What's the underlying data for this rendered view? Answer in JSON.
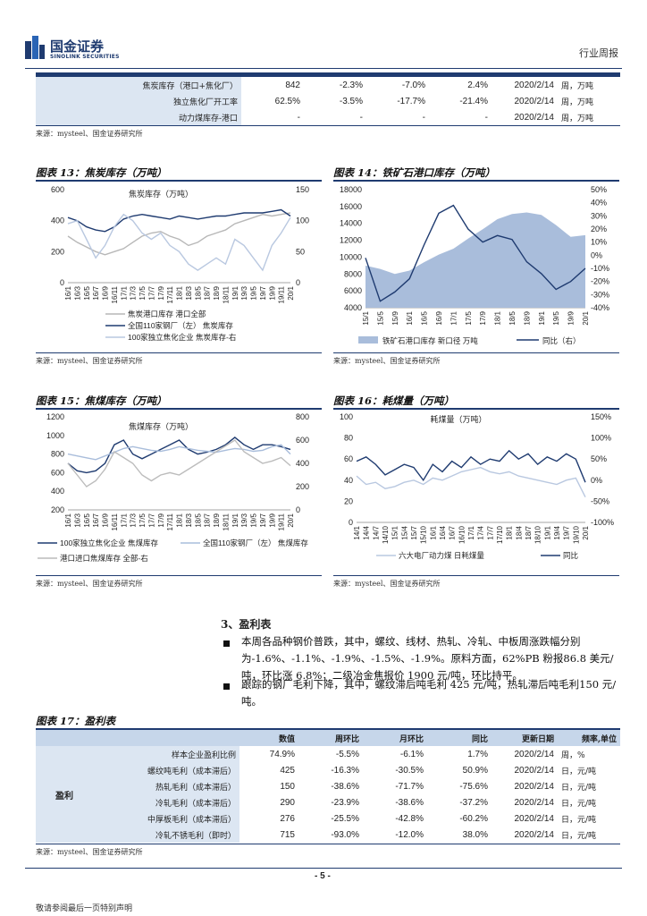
{
  "header": {
    "logo_cn": "国金证券",
    "logo_en": "SINOLINK SECURITIES",
    "doc_type": "行业周报"
  },
  "top_table": {
    "rows": [
      {
        "label": "焦炭库存（港口+焦化厂）",
        "cells": [
          "842",
          "-2.3%",
          "-7.0%",
          "2.4%",
          "2020/2/14"
        ],
        "unit": "周，万吨"
      },
      {
        "label": "独立焦化厂开工率",
        "cells": [
          "62.5%",
          "-3.5%",
          "-17.7%",
          "-21.4%",
          "2020/2/14"
        ],
        "unit": "周，万吨"
      },
      {
        "label": "动力煤库存-港口",
        "cells": [
          "-",
          "-",
          "-",
          "-",
          "2020/2/14"
        ],
        "unit": "周，万吨"
      }
    ],
    "source": "来源：mysteel、国金证券研究所"
  },
  "charts_row1": {
    "left_caption": "图表 13：焦炭库存（万吨）",
    "right_caption": "图表 14：铁矿石港口库存（万吨）",
    "source_left": "来源：mysteel、国金证券研究所",
    "source_right": "来源：mysteel、国金证券研究所"
  },
  "charts_row2": {
    "left_caption": "图表 15：焦煤库存（万吨）",
    "right_caption": "图表 16：耗煤量（万吨）",
    "source_left": "来源：mysteel、国金证券研究所",
    "source_right": "来源：mysteel、国金证券研究所"
  },
  "chart_data": [
    {
      "type": "line",
      "title": "焦炭库存（万吨）",
      "x_ticks": [
        "16/1",
        "16/3",
        "16/5",
        "16/7",
        "16/9",
        "16/11",
        "17/1",
        "17/3",
        "17/5",
        "17/7",
        "17/9",
        "17/11",
        "18/1",
        "18/3",
        "18/5",
        "18/7",
        "18/9",
        "18/11",
        "19/1",
        "19/3",
        "19/5",
        "19/7",
        "19/9",
        "19/11",
        "20/1"
      ],
      "ylim_left": [
        0,
        600
      ],
      "yticks_left": [
        "0",
        "200",
        "400",
        "600"
      ],
      "ylim_right": [
        0,
        150
      ],
      "yticks_right": [
        "0",
        "50",
        "100",
        "150"
      ],
      "series": [
        {
          "name": "焦炭港口库存 港口全部",
          "axis": "left",
          "color": "#b7b7b7",
          "values": [
            300,
            260,
            230,
            200,
            180,
            200,
            220,
            260,
            300,
            320,
            330,
            300,
            280,
            240,
            260,
            300,
            320,
            340,
            380,
            400,
            420,
            440,
            430,
            440,
            450
          ]
        },
        {
          "name": "全国110家钢厂（左） 焦炭库存",
          "axis": "left",
          "color": "#1f3b70",
          "values": [
            420,
            400,
            360,
            340,
            330,
            360,
            410,
            430,
            440,
            430,
            420,
            410,
            430,
            420,
            410,
            420,
            430,
            430,
            440,
            450,
            450,
            450,
            460,
            470,
            430
          ]
        },
        {
          "name": "100家独立焦化企业 焦炭库存-右",
          "axis": "right",
          "color": "#b9c8e0",
          "values": [
            95,
            100,
            70,
            40,
            60,
            90,
            110,
            100,
            80,
            70,
            80,
            60,
            50,
            30,
            20,
            30,
            40,
            30,
            70,
            60,
            40,
            20,
            60,
            80,
            105
          ]
        }
      ],
      "legend": [
        "焦炭港口库存 港口全部",
        "全国110家钢厂（左） 焦炭库存",
        "100家独立焦化企业 焦炭库存-右"
      ]
    },
    {
      "type": "area",
      "title": "铁矿石港口库存（万吨）",
      "x_ticks": [
        "15/1",
        "15/5",
        "15/9",
        "16/1",
        "16/5",
        "16/9",
        "17/1",
        "17/5",
        "17/9",
        "18/1",
        "18/5",
        "18/9",
        "19/1",
        "19/5",
        "19/9",
        "20/1"
      ],
      "ylim_left": [
        4000,
        18000
      ],
      "yticks_left": [
        "4000",
        "6000",
        "8000",
        "10000",
        "12000",
        "14000",
        "16000",
        "18000"
      ],
      "ylim_right": [
        -40,
        50
      ],
      "yticks_right": [
        "-40%",
        "-30%",
        "-20%",
        "-10%",
        "0%",
        "10%",
        "20%",
        "30%",
        "40%",
        "50%"
      ],
      "series": [
        {
          "name": "铁矿石港口库存 新口径 万吨",
          "axis": "left",
          "color": "#a9bddb",
          "values": [
            9000,
            8600,
            8000,
            8400,
            9400,
            10300,
            11000,
            12200,
            13300,
            14500,
            15100,
            15300,
            15000,
            13800,
            12400,
            12600
          ]
        },
        {
          "name": "同比（右）",
          "axis": "right",
          "color": "#1f3b70",
          "values": [
            -2,
            -35,
            -28,
            -18,
            8,
            32,
            38,
            20,
            10,
            15,
            12,
            -5,
            -14,
            -26,
            -20,
            -10
          ]
        }
      ],
      "legend": [
        "铁矿石港口库存 新口径 万吨",
        "同比（右）"
      ]
    },
    {
      "type": "line",
      "title": "焦煤库存（万吨）",
      "x_ticks": [
        "16/1",
        "16/3",
        "16/5",
        "16/7",
        "16/9",
        "16/11",
        "17/1",
        "17/3",
        "17/5",
        "17/7",
        "17/9",
        "17/11",
        "18/1",
        "18/3",
        "18/5",
        "18/7",
        "18/9",
        "18/11",
        "19/1",
        "19/3",
        "19/5",
        "19/7",
        "19/9",
        "19/11",
        "20/1"
      ],
      "ylim_left": [
        200,
        1200
      ],
      "yticks_left": [
        "200",
        "400",
        "600",
        "800",
        "1000",
        "1200"
      ],
      "ylim_right": [
        0,
        800
      ],
      "yticks_right": [
        "0",
        "200",
        "400",
        "600",
        "800"
      ],
      "series": [
        {
          "name": "100家独立焦化企业 焦煤库存",
          "axis": "left",
          "color": "#1f3b70",
          "values": [
            700,
            620,
            600,
            620,
            700,
            900,
            950,
            800,
            750,
            800,
            850,
            900,
            950,
            850,
            800,
            820,
            850,
            900,
            980,
            900,
            850,
            900,
            900,
            880,
            850
          ]
        },
        {
          "name": "全国110家钢厂（左） 焦煤库存",
          "axis": "left",
          "color": "#a9bddb",
          "values": [
            800,
            780,
            760,
            740,
            780,
            820,
            860,
            880,
            860,
            840,
            830,
            850,
            880,
            860,
            840,
            830,
            820,
            840,
            860,
            850,
            830,
            840,
            880,
            900,
            800
          ]
        },
        {
          "name": "港口进口焦煤库存 全部-右",
          "axis": "right",
          "color": "#bcbcbc",
          "values": [
            400,
            300,
            200,
            250,
            350,
            500,
            450,
            400,
            300,
            250,
            300,
            320,
            300,
            350,
            400,
            450,
            500,
            550,
            600,
            500,
            450,
            400,
            420,
            450,
            380
          ]
        }
      ],
      "legend": [
        "100家独立焦化企业 焦煤库存",
        "全国110家钢厂（左） 焦煤库存",
        "港口进口焦煤库存 全部-右"
      ]
    },
    {
      "type": "line",
      "title": "耗煤量（万吨）",
      "x_ticks": [
        "14/1",
        "14/4",
        "14/7",
        "14/10",
        "15/1",
        "15/4",
        "15/7",
        "15/10",
        "16/1",
        "16/4",
        "16/7",
        "16/10",
        "17/1",
        "17/4",
        "17/7",
        "17/10",
        "18/1",
        "18/4",
        "18/7",
        "18/10",
        "19/1",
        "19/4",
        "19/7",
        "19/10",
        "20/1"
      ],
      "ylim_left": [
        0,
        100
      ],
      "yticks_left": [
        "0",
        "20",
        "40",
        "60",
        "80",
        "100"
      ],
      "ylim_right": [
        -100,
        150
      ],
      "yticks_right": [
        "-100%",
        "-50%",
        "0%",
        "50%",
        "100%",
        "150%"
      ],
      "series": [
        {
          "name": "六大电厂动力煤 日耗煤量",
          "axis": "left",
          "color": "#1f3b70",
          "values": [
            58,
            62,
            55,
            45,
            50,
            55,
            52,
            40,
            55,
            48,
            58,
            52,
            62,
            55,
            60,
            58,
            68,
            60,
            65,
            55,
            62,
            58,
            65,
            60,
            38
          ]
        },
        {
          "name": "同比",
          "axis": "right",
          "color": "#b9c8e0",
          "values": [
            10,
            -10,
            -5,
            -20,
            -15,
            -5,
            0,
            -10,
            5,
            0,
            10,
            20,
            25,
            30,
            20,
            15,
            20,
            10,
            5,
            0,
            -5,
            -10,
            0,
            5,
            -40
          ]
        }
      ],
      "legend": [
        "六大电厂动力煤 日耗煤量",
        "同比"
      ]
    }
  ],
  "section": {
    "title": "3、盈利表",
    "bullets": [
      "本周各品种钢价普跌，其中，螺纹、线材、热轧、冷轧、中板周涨跌幅分别为-1.6%、-1.1%、-1.9%、-1.5%、-1.9%。原料方面，62%PB 粉报86.8 美元/吨，环比涨 6.8%；二级冶金焦报价 1900 元/吨，环比持平。",
      "跟踪的钢厂毛利下降，其中，螺纹滞后吨毛利 425 元/吨，热轧滞后吨毛利150 元/吨。"
    ]
  },
  "profit_table": {
    "caption": "图表 17：盈利表",
    "headers": [
      "数值",
      "周环比",
      "月环比",
      "同比",
      "更新日期",
      "频率,单位"
    ],
    "group_label": "盈利",
    "rows": [
      {
        "label": "样本企业盈利比例",
        "cells": [
          "74.9%",
          "-5.5%",
          "-6.1%",
          "1.7%",
          "2020/2/14"
        ],
        "unit": "周，%"
      },
      {
        "label": "螺纹吨毛利（成本滞后）",
        "cells": [
          "425",
          "-16.3%",
          "-30.5%",
          "50.9%",
          "2020/2/14"
        ],
        "unit": "日，元/吨"
      },
      {
        "label": "热轧毛利（成本滞后）",
        "cells": [
          "150",
          "-38.6%",
          "-71.7%",
          "-75.6%",
          "2020/2/14"
        ],
        "unit": "日，元/吨"
      },
      {
        "label": "冷轧毛利（成本滞后）",
        "cells": [
          "290",
          "-23.9%",
          "-38.6%",
          "-37.2%",
          "2020/2/14"
        ],
        "unit": "日，元/吨"
      },
      {
        "label": "中厚板毛利（成本滞后）",
        "cells": [
          "276",
          "-25.5%",
          "-42.8%",
          "-60.2%",
          "2020/2/14"
        ],
        "unit": "日，元/吨"
      },
      {
        "label": "冷轧不锈毛利（即时）",
        "cells": [
          "715",
          "-93.0%",
          "-12.0%",
          "38.0%",
          "2020/2/14"
        ],
        "unit": "日，元/吨"
      }
    ],
    "source": "来源：mysteel、国金证券研究所"
  },
  "footer": {
    "page": "- 5 -",
    "disclaimer": "敬请参阅最后一页特别声明"
  }
}
